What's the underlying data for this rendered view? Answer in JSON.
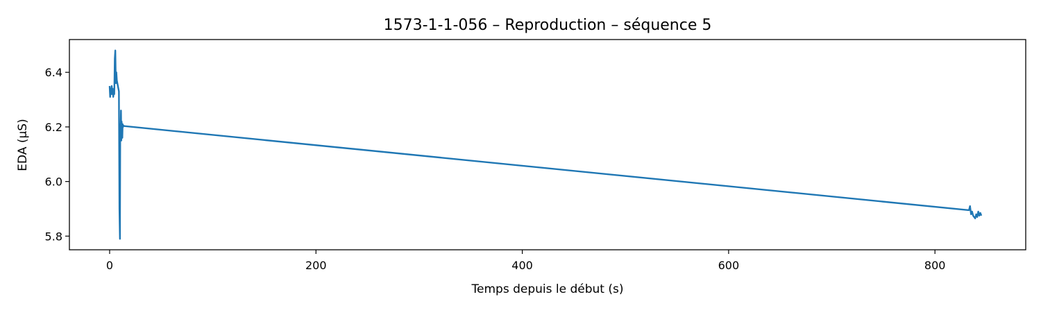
{
  "chart_data": {
    "type": "line",
    "title": "1573-1-1-056 – Reproduction – séquence 5",
    "xlabel": "Temps depuis le début (s)",
    "ylabel": "EDA (µS)",
    "xlim": [
      -39,
      888
    ],
    "ylim": [
      5.75,
      6.52
    ],
    "xticks": [
      0,
      200,
      400,
      600,
      800
    ],
    "yticks": [
      5.8,
      6.0,
      6.2,
      6.4
    ],
    "ytick_labels": [
      "5.8",
      "6.0",
      "6.2",
      "6.4"
    ],
    "grid": false,
    "legend": "none",
    "series": [
      {
        "color": "#1f77b4",
        "x": [
          0.0,
          0.5,
          1.0,
          1.5,
          2.0,
          2.5,
          3.0,
          3.5,
          4.0,
          4.5,
          5.0,
          5.5,
          6.0,
          6.5,
          7.0,
          7.5,
          8.0,
          8.5,
          9.0,
          9.5,
          10.0,
          10.3,
          10.6,
          11.0,
          11.3,
          11.6,
          12.0,
          12.3,
          12.6,
          13.0,
          13.5,
          14.0,
          833.0,
          834.0,
          835.0,
          836.0,
          837.0,
          838.0,
          839.0,
          840.0,
          841.0,
          842.0,
          843.0,
          844.0,
          845.0
        ],
        "y": [
          6.35,
          6.31,
          6.34,
          6.32,
          6.35,
          6.32,
          6.34,
          6.31,
          6.33,
          6.32,
          6.45,
          6.48,
          6.36,
          6.4,
          6.37,
          6.36,
          6.35,
          6.34,
          6.33,
          5.9,
          5.79,
          6.21,
          6.17,
          6.26,
          6.15,
          6.22,
          6.2,
          6.16,
          6.21,
          6.2,
          6.205,
          6.203,
          5.895,
          5.91,
          5.88,
          5.89,
          5.875,
          5.87,
          5.865,
          5.88,
          5.87,
          5.89,
          5.875,
          5.885,
          5.875
        ]
      }
    ]
  }
}
